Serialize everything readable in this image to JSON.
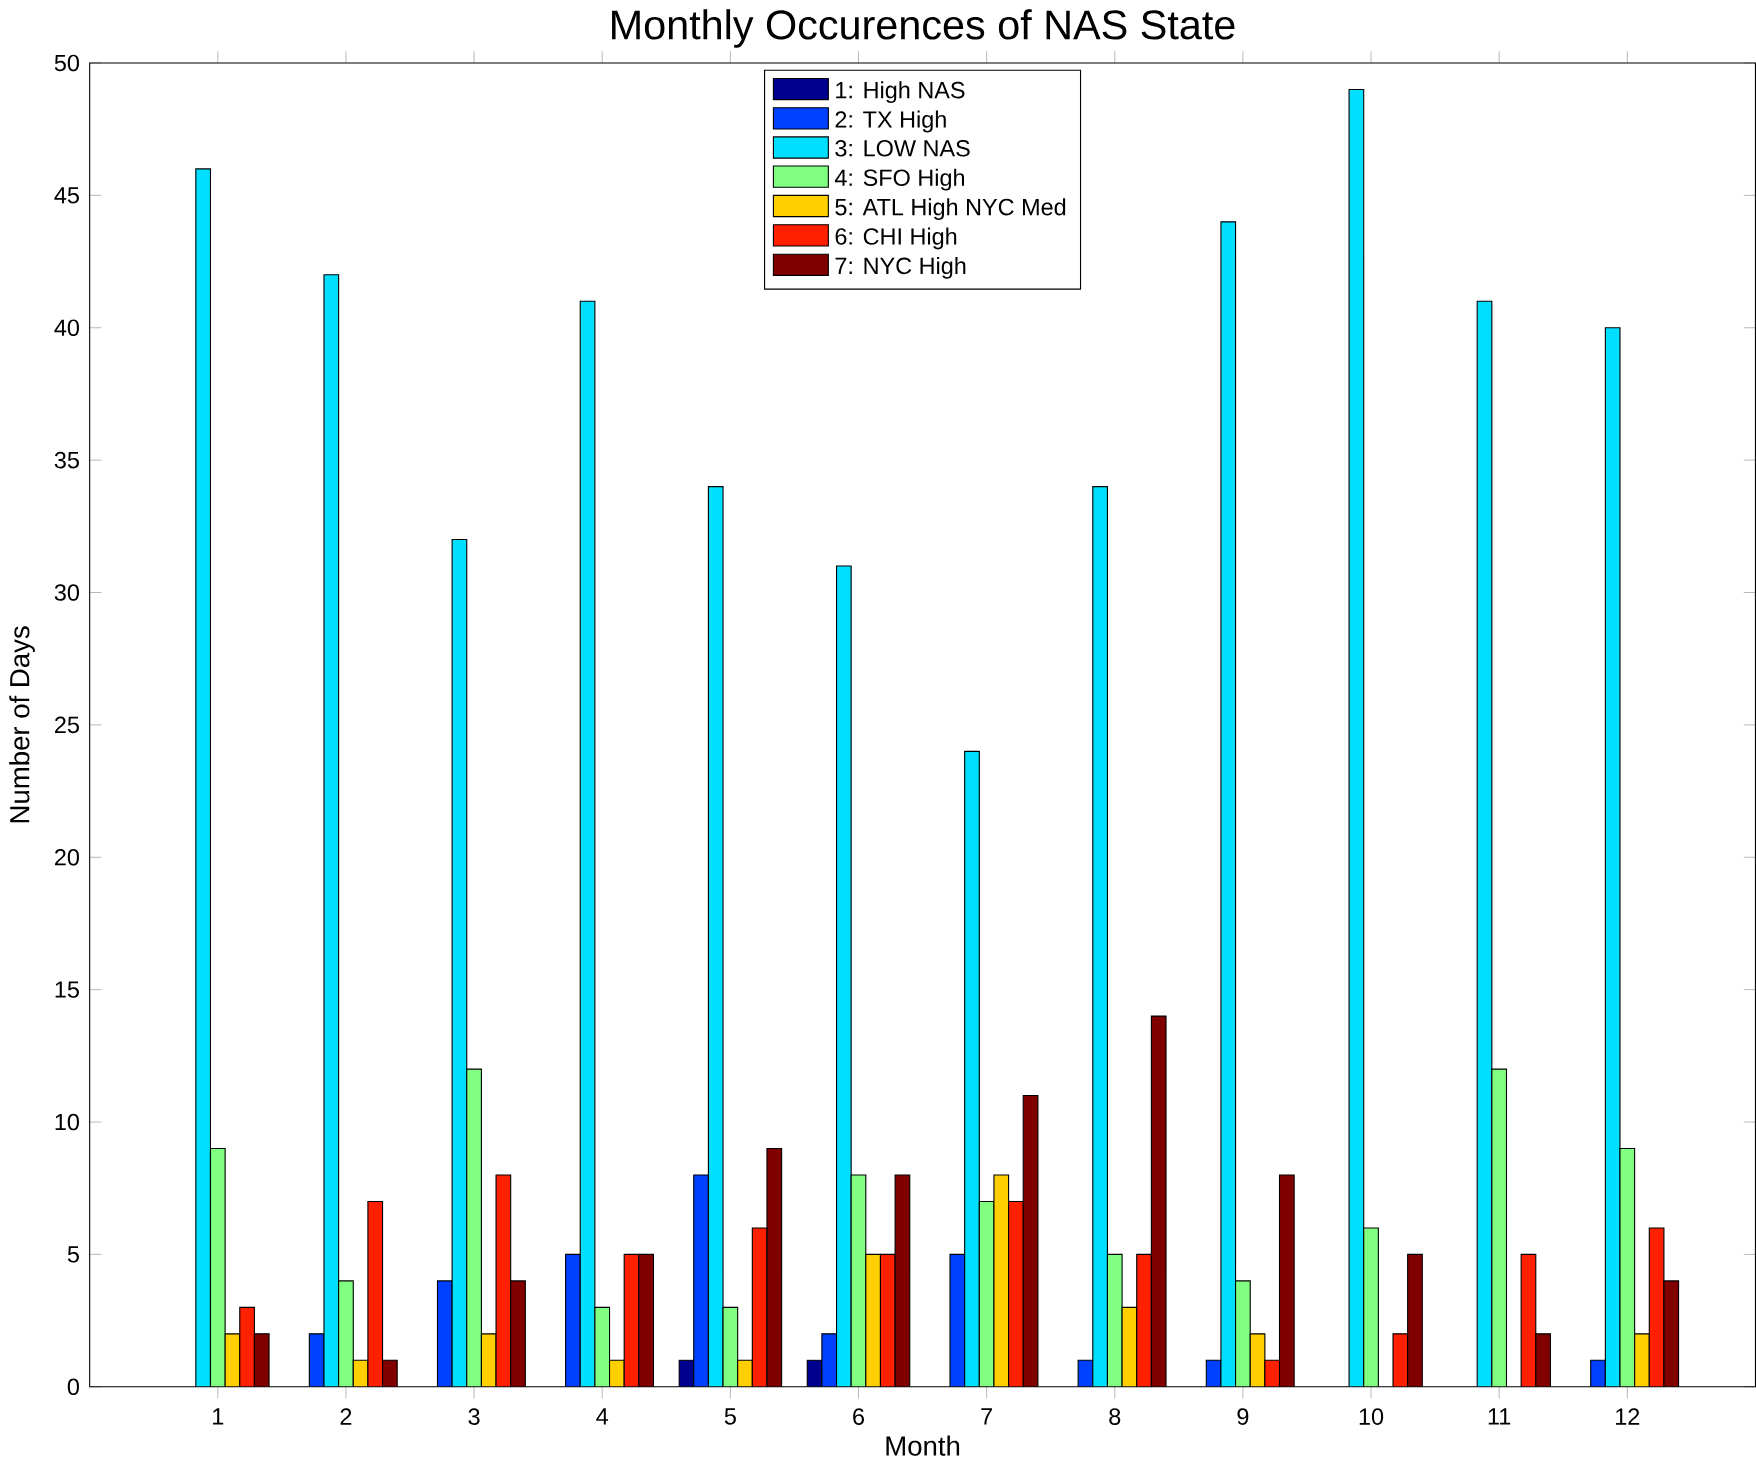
{
  "chart_data": {
    "type": "bar",
    "title": "Monthly Occurences of NAS State",
    "xlabel": "Month",
    "ylabel": "Number of Days",
    "categories": [
      "1",
      "2",
      "3",
      "4",
      "5",
      "6",
      "7",
      "8",
      "9",
      "10",
      "11",
      "12"
    ],
    "ylim": [
      0,
      50
    ],
    "yticks": [
      0,
      5,
      10,
      15,
      20,
      25,
      30,
      35,
      40,
      45,
      50
    ],
    "legend": "top",
    "grid": false,
    "series": [
      {
        "name": "1: High NAS",
        "color": "#00008f",
        "values": [
          0,
          0,
          0,
          0,
          1,
          1,
          0,
          0,
          0,
          0,
          0,
          0
        ]
      },
      {
        "name": "2: TX High",
        "color": "#0040ff",
        "values": [
          0,
          2,
          4,
          5,
          8,
          2,
          5,
          1,
          1,
          0,
          0,
          1
        ]
      },
      {
        "name": "3: LOW NAS",
        "color": "#00dfff",
        "values": [
          46,
          42,
          32,
          41,
          34,
          31,
          24,
          34,
          44,
          49,
          41,
          40
        ]
      },
      {
        "name": "4: SFO High",
        "color": "#80ff80",
        "values": [
          9,
          4,
          12,
          3,
          3,
          8,
          7,
          5,
          4,
          6,
          12,
          9
        ]
      },
      {
        "name": "5: ATL High NYC Med",
        "color": "#ffcf00",
        "values": [
          2,
          1,
          2,
          1,
          1,
          5,
          8,
          3,
          2,
          0,
          0,
          2
        ]
      },
      {
        "name": "6: CHI High",
        "color": "#ff2000",
        "values": [
          3,
          7,
          8,
          5,
          6,
          5,
          7,
          5,
          1,
          2,
          5,
          6
        ]
      },
      {
        "name": "7: NYC High",
        "color": "#800000",
        "values": [
          2,
          1,
          4,
          5,
          9,
          8,
          11,
          14,
          8,
          5,
          2,
          4
        ]
      }
    ]
  }
}
